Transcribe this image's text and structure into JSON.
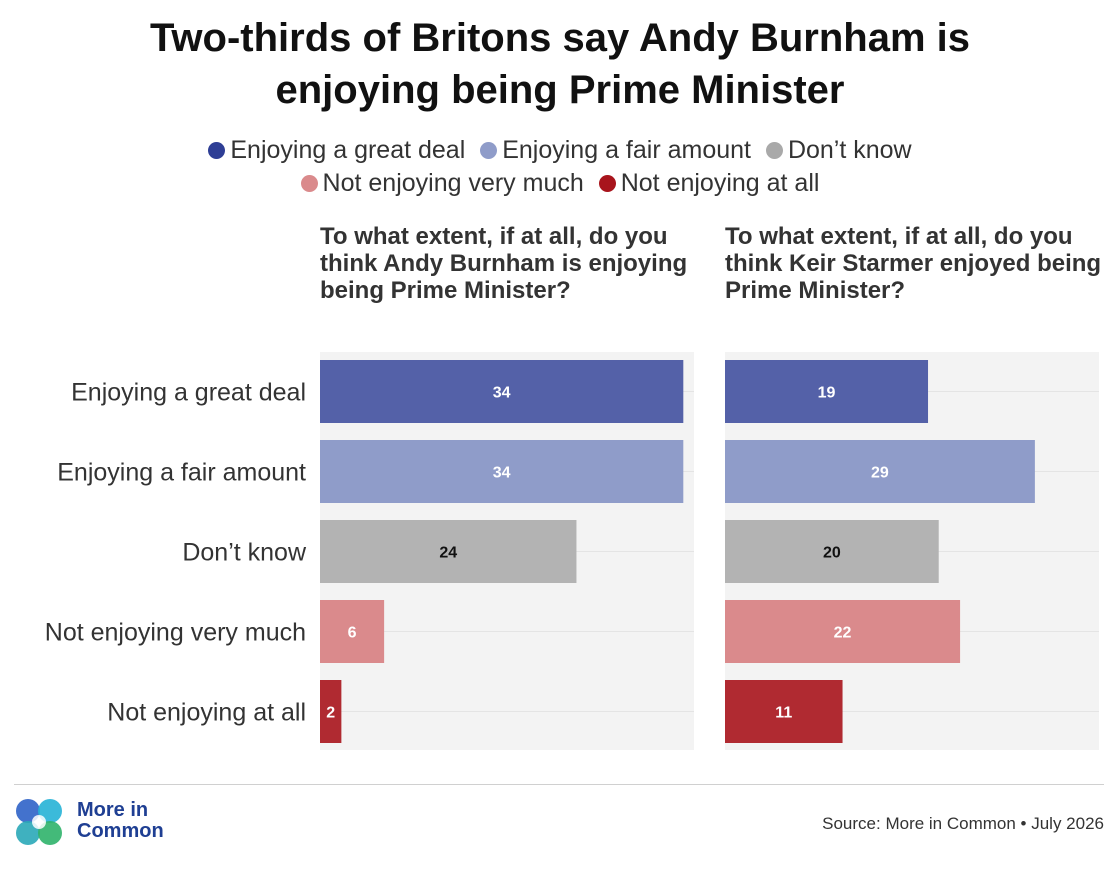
{
  "title_line1": "Two-thirds of Britons say Andy Burnham is",
  "title_line2": "enjoying being Prime Minister",
  "colors": {
    "great_deal": "#5461a8",
    "fair_amount": "#8f9cc9",
    "dont_know": "#b3b3b3",
    "not_very_much": "#da8a8c",
    "not_at_all": "#b02a31",
    "panel_bg": "#f3f3f3"
  },
  "legend": [
    {
      "label": "Enjoying a great deal",
      "color": "#2e3e95"
    },
    {
      "label": "Enjoying a fair amount",
      "color": "#8f9cc9"
    },
    {
      "label": "Don’t know",
      "color": "#a9a9a9"
    },
    {
      "label": "Not enjoying very much",
      "color": "#da8a8c"
    },
    {
      "label": "Not enjoying at all",
      "color": "#a8141c"
    }
  ],
  "panels": [
    {
      "title": "To what extent, if at all, do you think Andy Burnham is enjoying being Prime Minister?"
    },
    {
      "title": "To what extent, if at all, do you think Keir Starmer enjoyed being Prime Minister?"
    }
  ],
  "chart_data": {
    "type": "bar",
    "orientation": "horizontal",
    "categories": [
      "Enjoying a great deal",
      "Enjoying a fair amount",
      "Don’t know",
      "Not enjoying very much",
      "Not enjoying at all"
    ],
    "series": [
      {
        "name": "To what extent, if at all, do you think Andy Burnham is enjoying being Prime Minister?",
        "values": [
          34,
          34,
          24,
          6,
          2
        ]
      },
      {
        "name": "To what extent, if at all, do you think Keir Starmer enjoyed being Prime Minister?",
        "values": [
          19,
          29,
          20,
          22,
          11
        ]
      }
    ],
    "xlim": [
      0,
      35
    ],
    "grid": true,
    "legend_position": "top"
  },
  "footer": {
    "logo_line1": "More in",
    "logo_line2": "Common",
    "source": "Source: More in Common • July 2026"
  }
}
